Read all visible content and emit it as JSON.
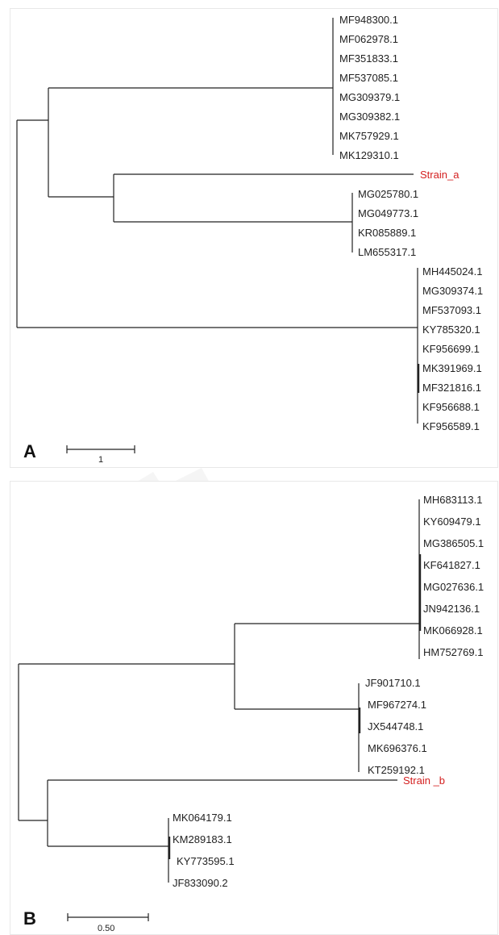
{
  "panel_a": {
    "letter": "A",
    "scale_label": "1",
    "colors": {
      "strain": "#d42020",
      "line": "#222222"
    },
    "clades": {
      "group_one": [
        "MF948300.1",
        "MF062978.1",
        "MF351833.1",
        "MF537085.1",
        "MG309379.1",
        "MG309382.1",
        "MK757929.1",
        "MK129310.1"
      ],
      "strain": "Strain_a",
      "group_two": [
        "MG025780.1",
        "MG049773.1",
        "KR085889.1",
        "LM655317.1"
      ],
      "group_three": [
        "MH445024.1",
        "MG309374.1",
        "MF537093.1",
        "KY785320.1",
        "KF956699.1",
        "MK391969.1",
        "MF321816.1",
        "KF956688.1",
        "KF956589.1"
      ]
    }
  },
  "panel_b": {
    "letter": "B",
    "scale_label": "0.50",
    "colors": {
      "strain": "#d42020",
      "line": "#222222"
    },
    "clades": {
      "group_one": [
        "MH683113.1",
        "KY609479.1",
        "MG386505.1",
        "KF641827.1",
        "MG027636.1",
        "JN942136.1",
        "MK066928.1",
        "HM752769.1"
      ],
      "group_two": [
        "JF901710.1",
        "MF967274.1",
        "JX544748.1",
        "MK696376.1",
        "KT259192.1"
      ],
      "strain": "Strain _b",
      "group_three": [
        "MK064179.1",
        "KM289183.1",
        "KY773595.1",
        "JF833090.2"
      ]
    }
  }
}
